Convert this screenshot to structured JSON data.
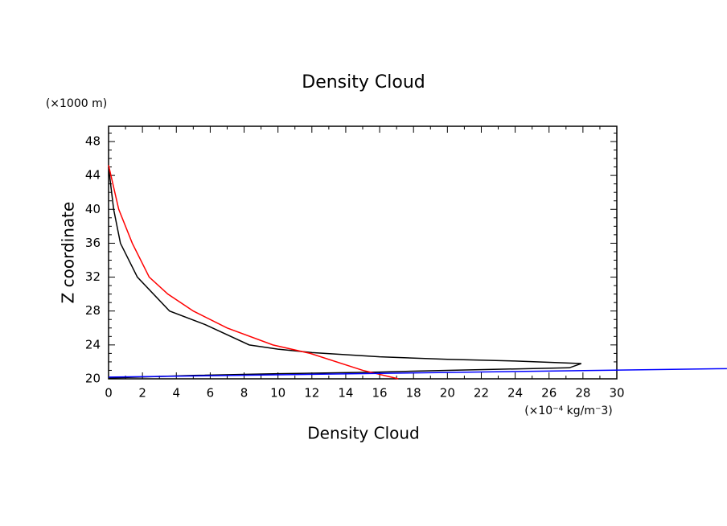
{
  "chart_data": {
    "type": "line",
    "title": "Density Cloud",
    "x_label": "Density Cloud",
    "y_label": "Z coordinate",
    "x_unit": "(×10⁻⁴ kg/m⁻3)",
    "y_unit": "(×1000 m)",
    "xlim": [
      0,
      30
    ],
    "xticks": [
      0,
      2,
      4,
      6,
      8,
      10,
      12,
      14,
      16,
      18,
      20,
      22,
      24,
      26,
      28,
      30
    ],
    "ylim": [
      20,
      49.8
    ],
    "yticks": [
      20,
      24,
      28,
      32,
      36,
      40,
      44,
      48
    ],
    "series": [
      {
        "name": "black",
        "color": "#000000",
        "x": [
          0,
          0.3,
          0.7,
          1.7,
          3.6,
          5.7,
          8.3,
          10,
          12,
          16,
          20,
          24,
          27.9,
          27.2,
          20,
          16,
          10,
          5,
          0
        ],
        "values": [
          45,
          40,
          36,
          32,
          28,
          26.4,
          24,
          23.5,
          23.1,
          22.6,
          22.3,
          22.1,
          21.8,
          21.3,
          21.0,
          20.8,
          20.6,
          20.4,
          20.1
        ]
      },
      {
        "name": "red",
        "color": "#ff0000",
        "x": [
          0,
          0.6,
          1.4,
          2.4,
          3.5,
          5.0,
          7.0,
          9.7,
          11.9,
          15.0,
          17.1
        ],
        "values": [
          45.2,
          40,
          36,
          32,
          30,
          28,
          26,
          24,
          23,
          21,
          20
        ]
      },
      {
        "name": "blue",
        "color": "#0000ff",
        "x": [
          0,
          36.5
        ],
        "values": [
          20.2,
          21.2
        ]
      }
    ]
  }
}
